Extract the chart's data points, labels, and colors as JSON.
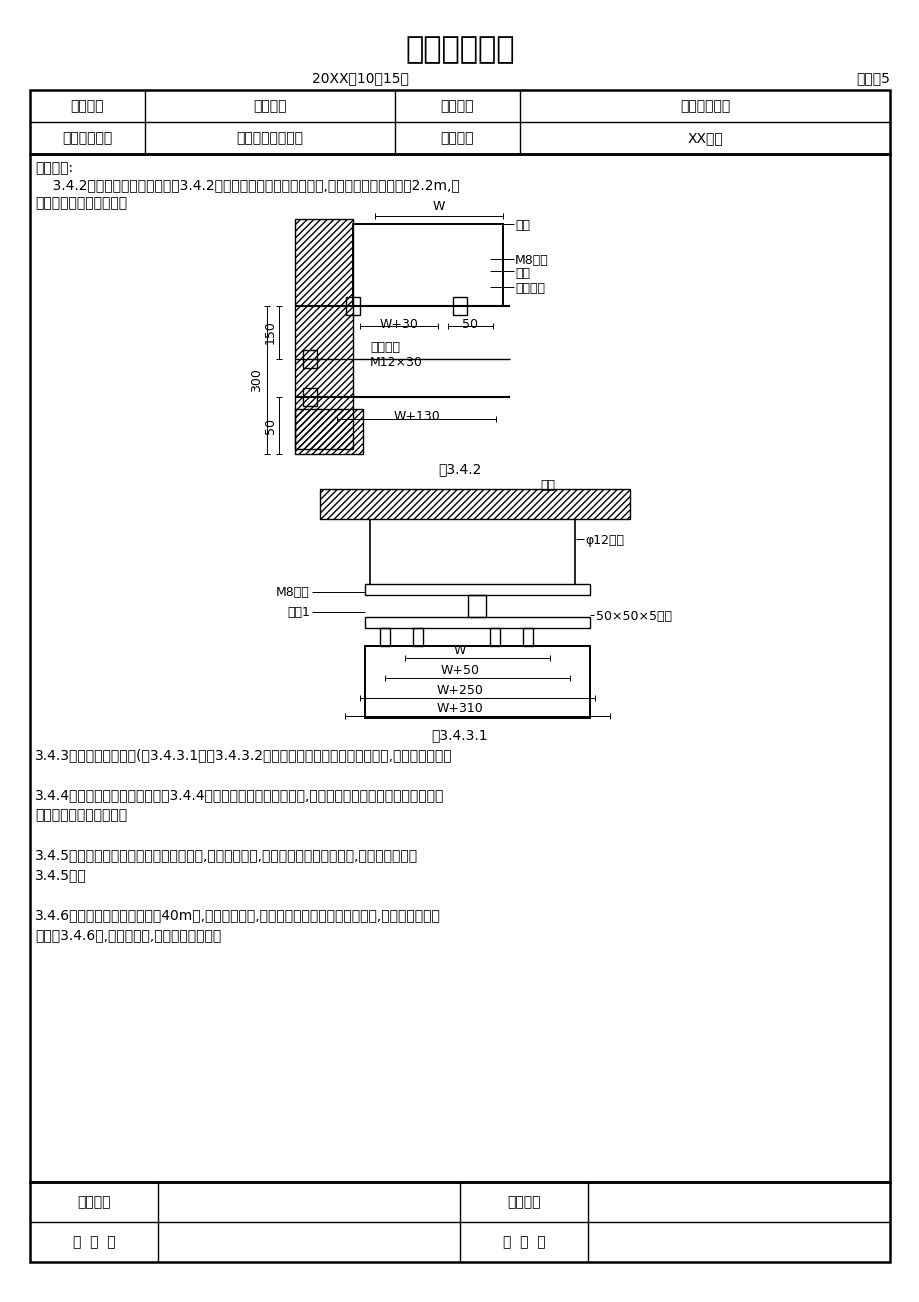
{
  "title": "技术交底记录",
  "date": "20XX年10月15日",
  "doc_ref": "施管表5",
  "row1": [
    "工程名称",
    "节能大厦",
    "分部工程",
    "建筑电气工程"
  ],
  "row2": [
    "分项工程名称",
    "封闭插接母线安装",
    "施工单位",
    "XX集团"
  ],
  "content_title": "交底内容:",
  "para1_l1": "    3.4.2母线槽沿墙水平安装（图3.4.2）。安装高度应符合设计要求,无要求时不应距地小于2.2m,母",
  "para1_l2": "线应可靠固定在支架上。",
  "fig1_caption": "图3.4.2",
  "fig2_caption": "图3.4.3.1",
  "para2": "3.4.3母线槽悬挂吊装。(图3.4.3.1、图3.4.3.2）吊杆直径应与母线槽重量相适应,螺母应能调节。",
  "para3_l1": "3.4.4封闭式母线的落地安装（图3.4.4）。安装高度应按设计要求,设计无要求时应符合规范要求。立柱",
  "para3_l2": "可采用钢管或型钢制作。",
  "para4_l1": "3.4.5封闭式母线垂直安装。沿墙或柱子处,应做固定支架,过楼板处应加装防震装置,并做防水台（图",
  "para4_l2": "3.4.5）。",
  "para5_l1": "3.4.6封闭式母线敷设长度超过40m时,应设置伸缩节,跨越建筑物的伸缩缝或沉降缝处,宜采取适应的措",
  "para5_l2": "施（图3.4.6）,设备定货时,应提出此项要求。",
  "bt_r1c1": "交底单位",
  "bt_r1c3": "接收单位",
  "bt_r2c1": "交  底  人",
  "bt_r2c3": "接  收  人",
  "bg_color": "#ffffff"
}
